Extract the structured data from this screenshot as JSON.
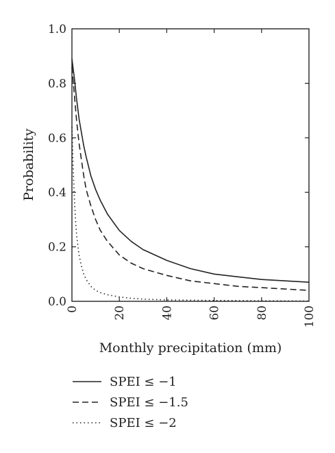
{
  "chart_data": {
    "type": "line",
    "title": "",
    "xlabel": "Monthly precipitation (mm)",
    "ylabel": "Probability",
    "xlim": [
      0,
      100
    ],
    "ylim": [
      0,
      1.0
    ],
    "x_ticks": [
      0,
      20,
      40,
      60,
      80,
      100
    ],
    "x_tick_labels": [
      "0",
      "20",
      "40",
      "60",
      "80",
      "100"
    ],
    "y_ticks": [
      0,
      0.2,
      0.4,
      0.6,
      0.8,
      1.0
    ],
    "y_tick_labels": [
      "0.0",
      "0.2",
      "0.4",
      "0.6",
      "0.8",
      "1.0"
    ],
    "grid": false,
    "legend_position": "bottom",
    "series": [
      {
        "name": "SPEI ≤ −1",
        "style": "solid",
        "x": [
          0,
          1,
          2,
          3,
          4,
          5,
          6,
          8,
          10,
          12,
          15,
          20,
          25,
          30,
          40,
          50,
          60,
          70,
          80,
          90,
          100
        ],
        "y": [
          0.89,
          0.82,
          0.74,
          0.67,
          0.62,
          0.57,
          0.53,
          0.46,
          0.41,
          0.37,
          0.32,
          0.26,
          0.22,
          0.19,
          0.15,
          0.12,
          0.1,
          0.09,
          0.08,
          0.075,
          0.07
        ]
      },
      {
        "name": "SPEI ≤ −1.5",
        "style": "dashed",
        "x": [
          0,
          1,
          2,
          3,
          4,
          5,
          6,
          8,
          10,
          12,
          15,
          20,
          25,
          30,
          40,
          50,
          60,
          70,
          80,
          90,
          100
        ],
        "y": [
          0.86,
          0.76,
          0.66,
          0.58,
          0.52,
          0.46,
          0.41,
          0.35,
          0.3,
          0.26,
          0.22,
          0.17,
          0.14,
          0.12,
          0.095,
          0.075,
          0.065,
          0.055,
          0.05,
          0.045,
          0.04
        ]
      },
      {
        "name": "SPEI ≤ −2",
        "style": "dotted",
        "x": [
          0,
          0.5,
          1,
          1.5,
          2,
          3,
          4,
          5,
          6,
          8,
          10,
          12,
          15,
          20,
          25,
          30,
          40,
          50,
          60,
          80,
          100
        ],
        "y": [
          0.64,
          0.5,
          0.38,
          0.3,
          0.24,
          0.17,
          0.13,
          0.1,
          0.08,
          0.055,
          0.04,
          0.032,
          0.024,
          0.016,
          0.011,
          0.008,
          0.005,
          0.004,
          0.003,
          0.002,
          0.001
        ]
      }
    ]
  }
}
